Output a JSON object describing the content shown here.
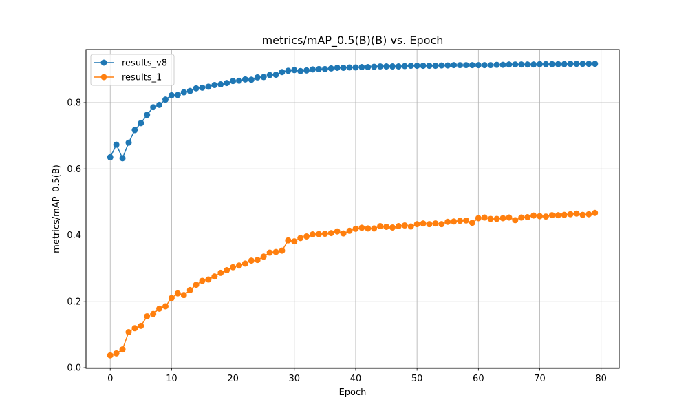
{
  "chart_data": {
    "type": "line",
    "title": "metrics/mAP_0.5(B)(B) vs. Epoch",
    "xlabel": "Epoch",
    "ylabel": "metrics/mAP_0.5(B)",
    "xlim": [
      -3.95,
      82.95
    ],
    "ylim": [
      -0.002,
      0.96
    ],
    "xticks": [
      0,
      10,
      20,
      30,
      40,
      50,
      60,
      70,
      80
    ],
    "yticks": [
      0.0,
      0.2,
      0.4,
      0.6,
      0.8
    ],
    "xtick_labels": [
      "0",
      "10",
      "20",
      "30",
      "40",
      "50",
      "60",
      "70",
      "80"
    ],
    "ytick_labels": [
      "0.0",
      "0.2",
      "0.4",
      "0.6",
      "0.8"
    ],
    "grid": true,
    "legend": "top-left",
    "x": [
      0,
      1,
      2,
      3,
      4,
      5,
      6,
      7,
      8,
      9,
      10,
      11,
      12,
      13,
      14,
      15,
      16,
      17,
      18,
      19,
      20,
      21,
      22,
      23,
      24,
      25,
      26,
      27,
      28,
      29,
      30,
      31,
      32,
      33,
      34,
      35,
      36,
      37,
      38,
      39,
      40,
      41,
      42,
      43,
      44,
      45,
      46,
      47,
      48,
      49,
      50,
      51,
      52,
      53,
      54,
      55,
      56,
      57,
      58,
      59,
      60,
      61,
      62,
      63,
      64,
      65,
      66,
      67,
      68,
      69,
      70,
      71,
      72,
      73,
      74,
      75,
      76,
      77,
      78,
      79
    ],
    "series": [
      {
        "name": "results_v8",
        "color": "#1f77b4",
        "values": [
          0.635,
          0.673,
          0.632,
          0.679,
          0.717,
          0.738,
          0.763,
          0.786,
          0.793,
          0.809,
          0.822,
          0.823,
          0.831,
          0.835,
          0.843,
          0.845,
          0.848,
          0.853,
          0.855,
          0.859,
          0.865,
          0.866,
          0.87,
          0.869,
          0.876,
          0.877,
          0.883,
          0.884,
          0.892,
          0.896,
          0.898,
          0.895,
          0.897,
          0.9,
          0.901,
          0.901,
          0.903,
          0.905,
          0.905,
          0.906,
          0.906,
          0.907,
          0.907,
          0.908,
          0.909,
          0.909,
          0.909,
          0.909,
          0.91,
          0.911,
          0.911,
          0.911,
          0.911,
          0.911,
          0.912,
          0.912,
          0.913,
          0.913,
          0.913,
          0.913,
          0.913,
          0.913,
          0.913,
          0.914,
          0.914,
          0.915,
          0.915,
          0.915,
          0.915,
          0.915,
          0.916,
          0.916,
          0.916,
          0.916,
          0.916,
          0.917,
          0.917,
          0.917,
          0.917,
          0.917
        ]
      },
      {
        "name": "results_1",
        "color": "#ff7f0e",
        "values": [
          0.037,
          0.043,
          0.055,
          0.107,
          0.119,
          0.126,
          0.155,
          0.162,
          0.178,
          0.185,
          0.21,
          0.224,
          0.219,
          0.234,
          0.25,
          0.262,
          0.266,
          0.275,
          0.286,
          0.294,
          0.303,
          0.308,
          0.314,
          0.323,
          0.325,
          0.335,
          0.347,
          0.349,
          0.353,
          0.384,
          0.381,
          0.391,
          0.396,
          0.402,
          0.403,
          0.404,
          0.406,
          0.411,
          0.405,
          0.413,
          0.419,
          0.422,
          0.42,
          0.42,
          0.427,
          0.425,
          0.423,
          0.427,
          0.429,
          0.426,
          0.433,
          0.435,
          0.433,
          0.435,
          0.433,
          0.44,
          0.441,
          0.443,
          0.444,
          0.437,
          0.451,
          0.453,
          0.449,
          0.449,
          0.451,
          0.453,
          0.445,
          0.453,
          0.454,
          0.459,
          0.457,
          0.456,
          0.46,
          0.46,
          0.461,
          0.463,
          0.465,
          0.461,
          0.463,
          0.467
        ]
      }
    ]
  }
}
